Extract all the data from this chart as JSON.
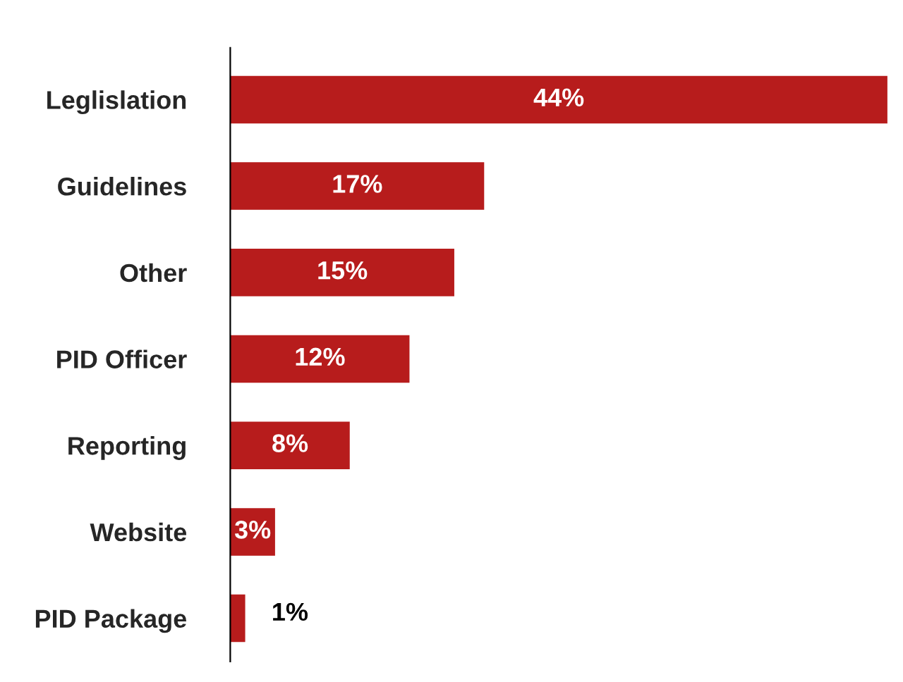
{
  "chart_data": {
    "type": "bar",
    "orientation": "horizontal",
    "categories": [
      "Leglislation",
      "Guidelines",
      "Other",
      "PID Officer",
      "Reporting",
      "Website",
      "PID Package"
    ],
    "values": [
      44,
      17,
      15,
      12,
      8,
      3,
      1
    ],
    "value_labels": [
      "44%",
      "17%",
      "15%",
      "12%",
      "8%",
      "3%",
      "1%"
    ],
    "color": "#b71c1c",
    "grid": false,
    "legend": false
  }
}
